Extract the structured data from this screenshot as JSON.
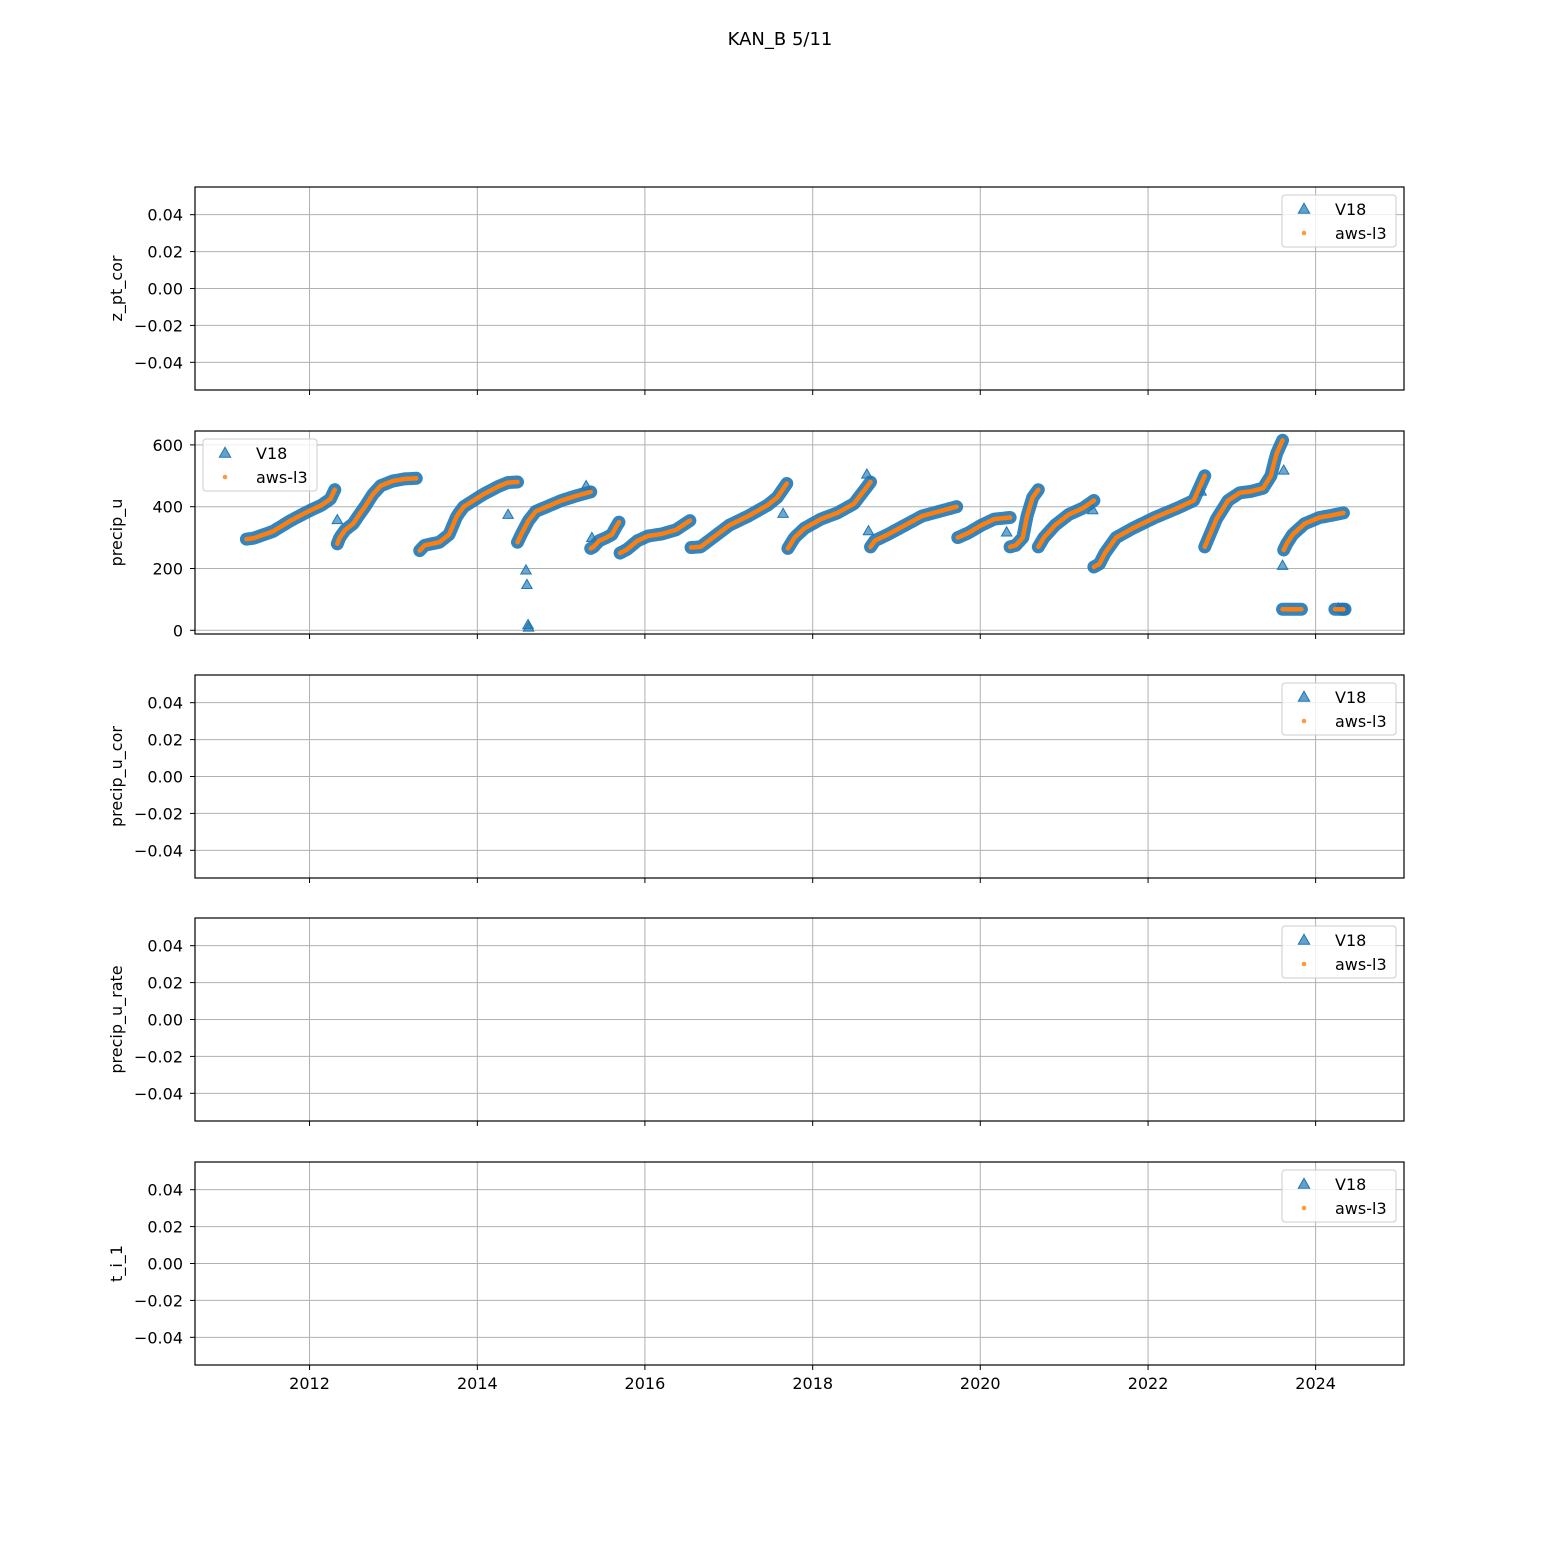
{
  "figure_title": "KAN_B 5/11",
  "colors": {
    "v18": "#1f77b4",
    "aws_l3": "#ff7f0e",
    "grid": "#b0b0b0",
    "legend_edge": "#cccccc"
  },
  "legend": {
    "v18": "V18",
    "aws_l3": "aws-l3"
  },
  "chart_data": [
    {
      "type": "scatter",
      "ylabel": "z_pt_cor",
      "xlim": [
        "2010-08-20",
        "2025-01-20"
      ],
      "ylim": [
        -0.055,
        0.055
      ],
      "yticks": [
        -0.04,
        -0.02,
        0.0,
        0.02,
        0.04
      ],
      "ytick_labels": [
        "−0.04",
        "−0.02",
        "0.00",
        "0.02",
        "0.04"
      ],
      "xticks": [
        "2012-01-01",
        "2014-01-01",
        "2016-01-01",
        "2018-01-01",
        "2020-01-01",
        "2022-01-01",
        "2024-01-01"
      ],
      "xtick_labels": [
        "2012",
        "2014",
        "2016",
        "2018",
        "2020",
        "2022",
        "2024"
      ],
      "show_xtick_labels": false,
      "grid": true,
      "legend_position": "upper right",
      "series": [
        {
          "name": "V18",
          "marker": "triangle",
          "x": [],
          "y": []
        },
        {
          "name": "aws-l3",
          "marker": "dot",
          "x": [],
          "y": []
        }
      ]
    },
    {
      "type": "scatter",
      "ylabel": "precip_u",
      "xlim": [
        "2010-08-20",
        "2025-01-20"
      ],
      "ylim": [
        -12,
        645
      ],
      "yticks": [
        0,
        200,
        400,
        600
      ],
      "ytick_labels": [
        "0",
        "200",
        "400",
        "600"
      ],
      "xticks": [
        "2012-01-01",
        "2014-01-01",
        "2016-01-01",
        "2018-01-01",
        "2020-01-01",
        "2022-01-01",
        "2024-01-01"
      ],
      "xtick_labels": [
        "2012",
        "2014",
        "2016",
        "2018",
        "2020",
        "2022",
        "2024"
      ],
      "show_xtick_labels": false,
      "grid": true,
      "legend_position": "upper left",
      "segments": [
        {
          "start": "2011-04-01",
          "end": "2012-04-20",
          "points": [
            [
              0,
              295
            ],
            [
              0.08,
              298
            ],
            [
              0.15,
              305
            ],
            [
              0.3,
              320
            ],
            [
              0.5,
              355
            ],
            [
              0.7,
              385
            ],
            [
              0.85,
              405
            ],
            [
              0.95,
              425
            ],
            [
              1,
              455
            ]
          ]
        },
        {
          "start": "2012-05-01",
          "end": "2013-04-10",
          "points": [
            [
              0,
              280
            ],
            [
              0.03,
              300
            ],
            [
              0.1,
              325
            ],
            [
              0.2,
              345
            ],
            [
              0.28,
              375
            ],
            [
              0.35,
              400
            ],
            [
              0.45,
              440
            ],
            [
              0.55,
              468
            ],
            [
              0.7,
              483
            ],
            [
              0.85,
              490
            ],
            [
              1,
              492
            ]
          ]
        },
        {
          "start": "2013-04-25",
          "end": "2014-06-25",
          "points": [
            [
              0,
              258
            ],
            [
              0.05,
              275
            ],
            [
              0.2,
              285
            ],
            [
              0.3,
              310
            ],
            [
              0.38,
              370
            ],
            [
              0.45,
              400
            ],
            [
              0.55,
              420
            ],
            [
              0.65,
              440
            ],
            [
              0.8,
              465
            ],
            [
              0.9,
              478
            ],
            [
              1,
              480
            ]
          ]
        },
        {
          "start": "2014-06-25",
          "end": "2015-05-10",
          "points": [
            [
              0,
              285
            ],
            [
              0.05,
              310
            ],
            [
              0.15,
              355
            ],
            [
              0.25,
              385
            ],
            [
              0.4,
              400
            ],
            [
              0.6,
              420
            ],
            [
              0.8,
              435
            ],
            [
              1,
              448
            ]
          ]
        },
        {
          "start": "2015-05-10",
          "end": "2015-09-10",
          "points": [
            [
              0,
              265
            ],
            [
              0.1,
              270
            ],
            [
              0.3,
              290
            ],
            [
              0.55,
              300
            ],
            [
              0.75,
              310
            ],
            [
              0.9,
              335
            ],
            [
              1,
              350
            ]
          ]
        },
        {
          "start": "2015-09-15",
          "end": "2016-07-15",
          "points": [
            [
              0,
              250
            ],
            [
              0.1,
              262
            ],
            [
              0.25,
              290
            ],
            [
              0.4,
              305
            ],
            [
              0.6,
              312
            ],
            [
              0.8,
              325
            ],
            [
              1,
              355
            ]
          ]
        },
        {
          "start": "2016-07-20",
          "end": "2017-09-10",
          "points": [
            [
              0,
              268
            ],
            [
              0.1,
              270
            ],
            [
              0.25,
              305
            ],
            [
              0.4,
              340
            ],
            [
              0.6,
              370
            ],
            [
              0.8,
              405
            ],
            [
              0.9,
              430
            ],
            [
              1,
              475
            ]
          ]
        },
        {
          "start": "2017-09-15",
          "end": "2018-09-10",
          "points": [
            [
              0,
              265
            ],
            [
              0.08,
              300
            ],
            [
              0.2,
              330
            ],
            [
              0.4,
              360
            ],
            [
              0.6,
              380
            ],
            [
              0.8,
              410
            ],
            [
              1,
              480
            ]
          ]
        },
        {
          "start": "2018-09-10",
          "end": "2019-09-20",
          "points": [
            [
              0,
              270
            ],
            [
              0.05,
              290
            ],
            [
              0.2,
              310
            ],
            [
              0.4,
              340
            ],
            [
              0.6,
              370
            ],
            [
              0.8,
              385
            ],
            [
              1,
              400
            ]
          ]
        },
        {
          "start": "2019-09-25",
          "end": "2020-05-10",
          "points": [
            [
              0,
              300
            ],
            [
              0.2,
              315
            ],
            [
              0.45,
              340
            ],
            [
              0.7,
              360
            ],
            [
              1,
              365
            ]
          ]
        },
        {
          "start": "2020-05-10",
          "end": "2020-09-10",
          "points": [
            [
              0,
              270
            ],
            [
              0.2,
              275
            ],
            [
              0.45,
              300
            ],
            [
              0.6,
              370
            ],
            [
              0.8,
              430
            ],
            [
              1,
              455
            ]
          ]
        },
        {
          "start": "2020-09-10",
          "end": "2021-05-10",
          "points": [
            [
              0,
              270
            ],
            [
              0.1,
              300
            ],
            [
              0.3,
              340
            ],
            [
              0.55,
              375
            ],
            [
              0.8,
              395
            ],
            [
              1,
              420
            ]
          ]
        },
        {
          "start": "2021-05-10",
          "end": "2022-09-05",
          "points": [
            [
              0,
              205
            ],
            [
              0.05,
              215
            ],
            [
              0.1,
              250
            ],
            [
              0.2,
              300
            ],
            [
              0.35,
              330
            ],
            [
              0.55,
              365
            ],
            [
              0.75,
              395
            ],
            [
              0.9,
              420
            ],
            [
              1,
              500
            ]
          ]
        },
        {
          "start": "2022-09-05",
          "end": "2023-08-10",
          "points": [
            [
              0,
              270
            ],
            [
              0.05,
              300
            ],
            [
              0.15,
              360
            ],
            [
              0.3,
              420
            ],
            [
              0.45,
              445
            ],
            [
              0.6,
              450
            ],
            [
              0.75,
              460
            ],
            [
              0.85,
              500
            ],
            [
              0.92,
              570
            ],
            [
              1,
              615
            ]
          ]
        },
        {
          "start": "2023-08-10",
          "end": "2023-10-31",
          "points": [
            [
              0,
              68
            ],
            [
              1,
              68
            ]
          ]
        },
        {
          "start": "2023-08-15",
          "end": "2024-05-01",
          "points": [
            [
              0,
              260
            ],
            [
              0.05,
              280
            ],
            [
              0.15,
              310
            ],
            [
              0.35,
              345
            ],
            [
              0.6,
              365
            ],
            [
              0.8,
              372
            ],
            [
              1,
              380
            ]
          ]
        },
        {
          "start": "2024-03-25",
          "end": "2024-05-01",
          "points": [
            [
              0,
              68
            ],
            [
              1,
              68
            ]
          ]
        }
      ],
      "v18_only_segments": [
        {
          "start": "2024-04-25",
          "end": "2024-05-08",
          "points": [
            [
              0,
              68
            ],
            [
              1,
              68
            ]
          ]
        }
      ],
      "v18_outliers": [
        [
          "2012-05-01",
          358
        ],
        [
          "2014-05-15",
          375
        ],
        [
          "2014-08-01",
          195
        ],
        [
          "2014-08-05",
          148
        ],
        [
          "2014-08-10",
          18
        ],
        [
          "2014-08-12",
          10
        ],
        [
          "2015-04-20",
          468
        ],
        [
          "2015-05-15",
          300
        ],
        [
          "2017-08-25",
          378
        ],
        [
          "2018-09-01",
          322
        ],
        [
          "2018-08-25",
          505
        ],
        [
          "2020-04-25",
          318
        ],
        [
          "2021-05-05",
          390
        ],
        [
          "2022-08-20",
          450
        ],
        [
          "2023-08-15",
          518
        ],
        [
          "2023-08-10",
          210
        ],
        [
          "2024-04-10",
          72
        ]
      ],
      "series": [
        {
          "name": "V18",
          "marker": "triangle"
        },
        {
          "name": "aws-l3",
          "marker": "dot"
        }
      ]
    },
    {
      "type": "scatter",
      "ylabel": "precip_u_cor",
      "xlim": [
        "2010-08-20",
        "2025-01-20"
      ],
      "ylim": [
        -0.055,
        0.055
      ],
      "yticks": [
        -0.04,
        -0.02,
        0.0,
        0.02,
        0.04
      ],
      "ytick_labels": [
        "−0.04",
        "−0.02",
        "0.00",
        "0.02",
        "0.04"
      ],
      "xticks": [
        "2012-01-01",
        "2014-01-01",
        "2016-01-01",
        "2018-01-01",
        "2020-01-01",
        "2022-01-01",
        "2024-01-01"
      ],
      "xtick_labels": [
        "2012",
        "2014",
        "2016",
        "2018",
        "2020",
        "2022",
        "2024"
      ],
      "show_xtick_labels": false,
      "grid": true,
      "legend_position": "upper right",
      "series": [
        {
          "name": "V18",
          "marker": "triangle",
          "x": [],
          "y": []
        },
        {
          "name": "aws-l3",
          "marker": "dot",
          "x": [],
          "y": []
        }
      ]
    },
    {
      "type": "scatter",
      "ylabel": "precip_u_rate",
      "xlim": [
        "2010-08-20",
        "2025-01-20"
      ],
      "ylim": [
        -0.055,
        0.055
      ],
      "yticks": [
        -0.04,
        -0.02,
        0.0,
        0.02,
        0.04
      ],
      "ytick_labels": [
        "−0.04",
        "−0.02",
        "0.00",
        "0.02",
        "0.04"
      ],
      "xticks": [
        "2012-01-01",
        "2014-01-01",
        "2016-01-01",
        "2018-01-01",
        "2020-01-01",
        "2022-01-01",
        "2024-01-01"
      ],
      "xtick_labels": [
        "2012",
        "2014",
        "2016",
        "2018",
        "2020",
        "2022",
        "2024"
      ],
      "show_xtick_labels": false,
      "grid": true,
      "legend_position": "upper right",
      "series": [
        {
          "name": "V18",
          "marker": "triangle",
          "x": [],
          "y": []
        },
        {
          "name": "aws-l3",
          "marker": "dot",
          "x": [],
          "y": []
        }
      ]
    },
    {
      "type": "scatter",
      "ylabel": "t_i_1",
      "xlim": [
        "2010-08-20",
        "2025-01-20"
      ],
      "ylim": [
        -0.055,
        0.055
      ],
      "yticks": [
        -0.04,
        -0.02,
        0.0,
        0.02,
        0.04
      ],
      "ytick_labels": [
        "−0.04",
        "−0.02",
        "0.00",
        "0.02",
        "0.04"
      ],
      "xticks": [
        "2012-01-01",
        "2014-01-01",
        "2016-01-01",
        "2018-01-01",
        "2020-01-01",
        "2022-01-01",
        "2024-01-01"
      ],
      "xtick_labels": [
        "2012",
        "2014",
        "2016",
        "2018",
        "2020",
        "2022",
        "2024"
      ],
      "show_xtick_labels": true,
      "grid": true,
      "legend_position": "upper right",
      "series": [
        {
          "name": "V18",
          "marker": "triangle",
          "x": [],
          "y": []
        },
        {
          "name": "aws-l3",
          "marker": "dot",
          "x": [],
          "y": []
        }
      ]
    }
  ]
}
